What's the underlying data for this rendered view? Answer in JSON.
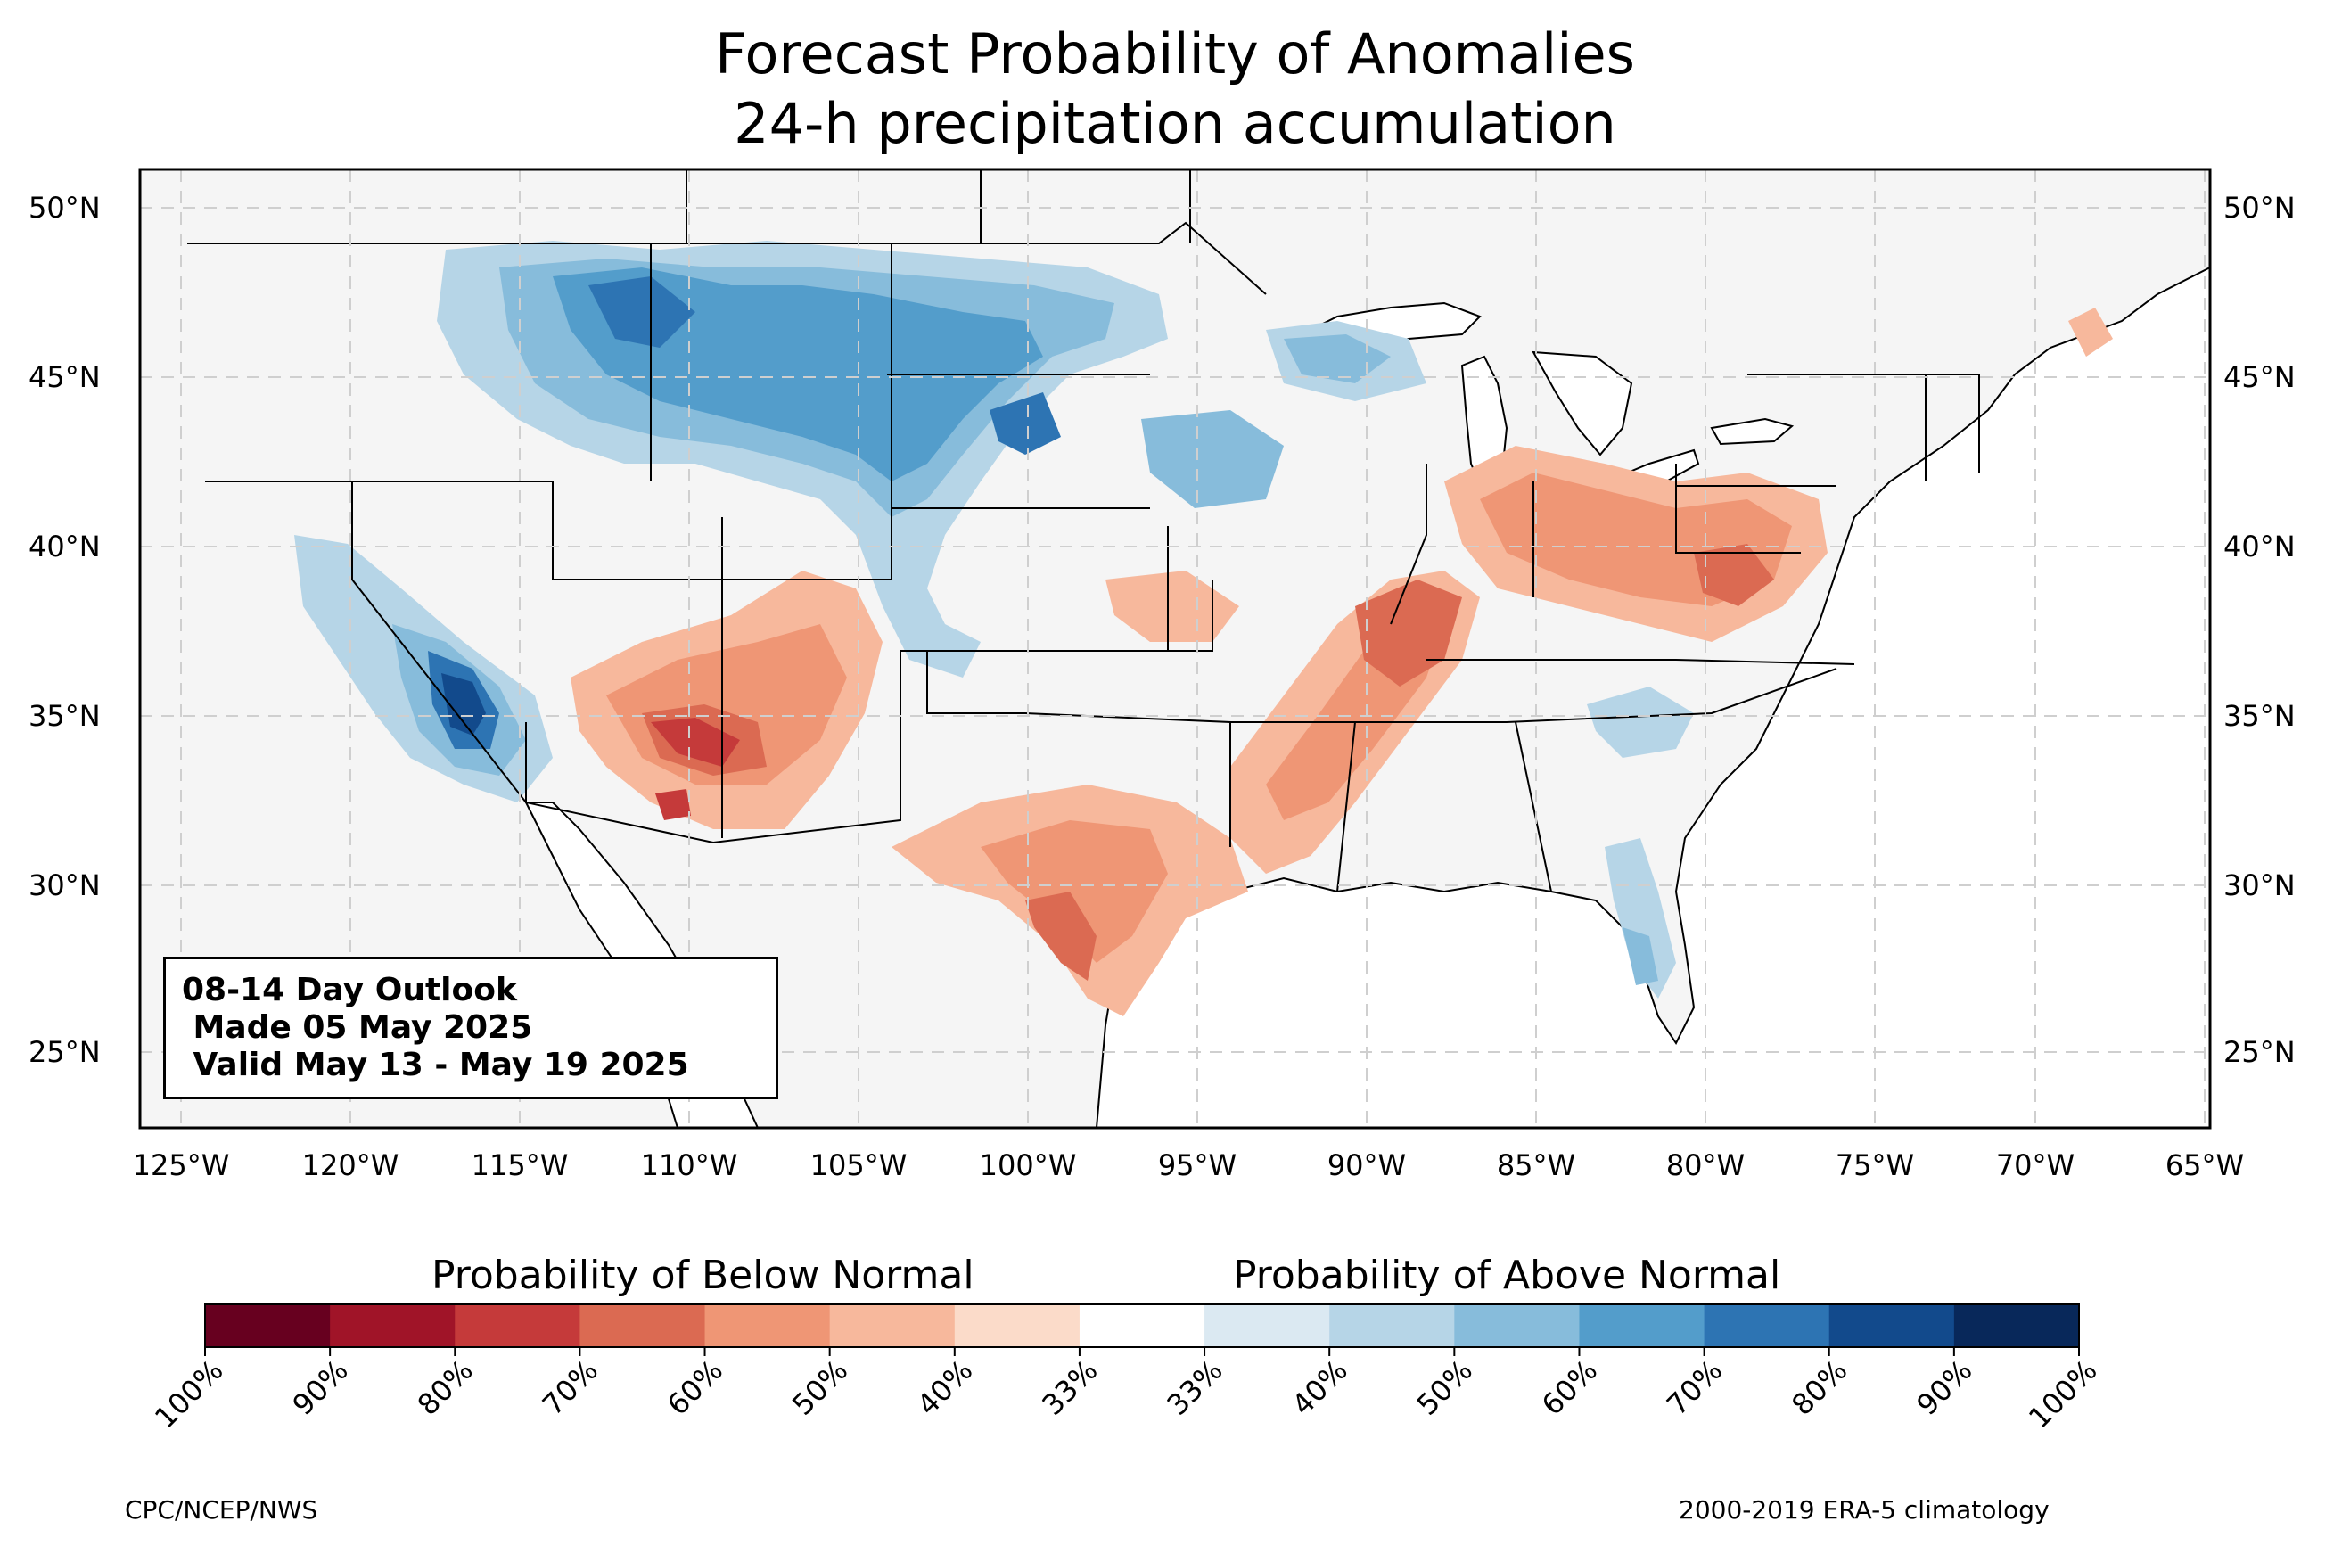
{
  "title": {
    "line1": "Forecast Probability of Anomalies",
    "line2": "24-h precipitation accumulation"
  },
  "map": {
    "lat_labels": [
      "50°N",
      "45°N",
      "40°N",
      "35°N",
      "30°N",
      "25°N"
    ],
    "lon_labels": [
      "125°W",
      "120°W",
      "115°W",
      "110°W",
      "105°W",
      "100°W",
      "95°W",
      "90°W",
      "85°W",
      "80°W",
      "75°W",
      "70°W",
      "65°W"
    ],
    "land_color": "#f5f5f5",
    "water_color": "#ffffff"
  },
  "outlook": {
    "line1": "08-14 Day Outlook",
    "line2": " Made 05 May 2025",
    "line3": " Valid May 13 - May 19 2025"
  },
  "colorbar": {
    "below_label": "Probability of Below Normal",
    "above_label": "Probability of Above Normal",
    "tick_labels": [
      "100%",
      "90%",
      "80%",
      "70%",
      "60%",
      "50%",
      "40%",
      "33%",
      "33%",
      "40%",
      "50%",
      "60%",
      "70%",
      "80%",
      "90%",
      "100%"
    ],
    "colors": [
      "#67001f",
      "#a01428",
      "#c53a3a",
      "#db6a52",
      "#ef9675",
      "#f7b89c",
      "#fbdbc9",
      "#ffffff",
      "#dbe9f2",
      "#b6d5e7",
      "#87bcdb",
      "#539dcb",
      "#2d74b3",
      "#124a8c",
      "#08285a"
    ]
  },
  "footer": {
    "left": "CPC/NCEP/NWS",
    "right": "2000-2019 ERA-5 climatology"
  }
}
